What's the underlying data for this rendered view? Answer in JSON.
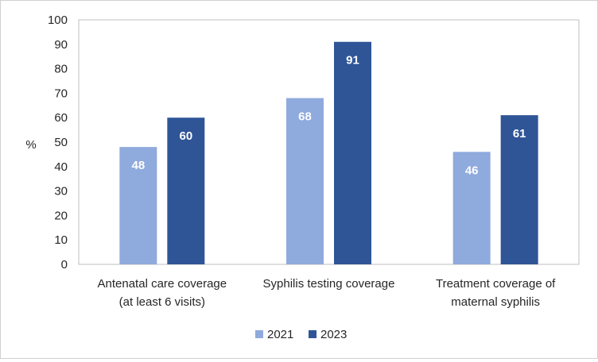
{
  "chart_data": {
    "type": "bar",
    "ylabel": "%",
    "ylim": [
      0,
      100
    ],
    "yticks": [
      0,
      10,
      20,
      30,
      40,
      50,
      60,
      70,
      80,
      90,
      100
    ],
    "categories": [
      [
        "Antenatal care coverage",
        "(at least 6 visits)"
      ],
      [
        "Syphilis testing coverage"
      ],
      [
        "Treatment coverage of",
        "maternal syphilis"
      ]
    ],
    "series": [
      {
        "name": "2021",
        "color": "#8faadc",
        "values": [
          48,
          68,
          46
        ]
      },
      {
        "name": "2023",
        "color": "#2f5597",
        "values": [
          60,
          91,
          61
        ]
      }
    ],
    "legend_position": "bottom"
  }
}
